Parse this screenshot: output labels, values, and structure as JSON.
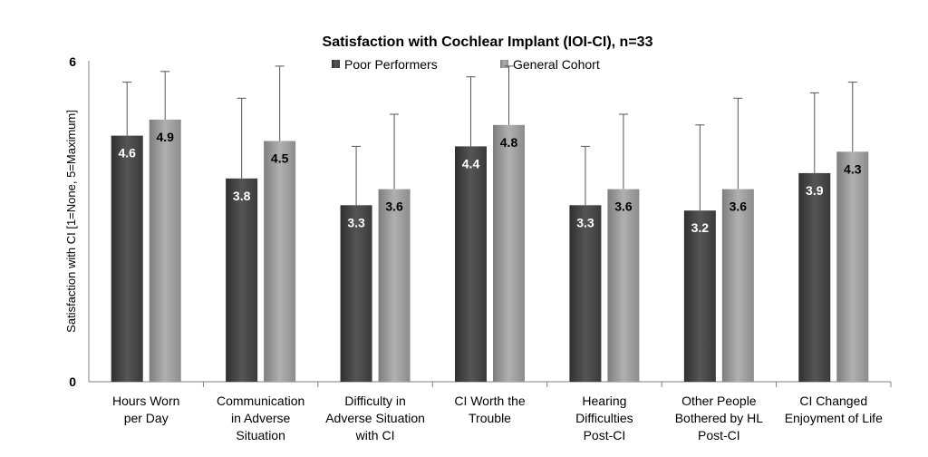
{
  "chart_data": {
    "type": "bar",
    "title": "Satisfaction with Cochlear Implant (IOI-CI), n=33",
    "ylabel": "Satisfaction with CI [1=None, 5=Maximum]",
    "xlabel": "",
    "ylim": [
      0,
      6
    ],
    "yticks": [
      "0",
      "6"
    ],
    "legend_position": "top",
    "categories": [
      [
        "Hours Worn",
        "per Day"
      ],
      [
        "Communication",
        "in Adverse",
        "Situation"
      ],
      [
        "Difficulty in",
        "Adverse Situation",
        "with CI"
      ],
      [
        "CI Worth the",
        "Trouble"
      ],
      [
        "Hearing",
        "Difficulties",
        "Post-CI"
      ],
      [
        "Other People",
        "Bothered by HL",
        "Post-CI"
      ],
      [
        "CI Changed",
        "Enjoyment of Life"
      ]
    ],
    "series": [
      {
        "name": "Poor Performers",
        "color": "#4a4a4a",
        "values": [
          4.6,
          3.8,
          3.3,
          4.4,
          3.3,
          3.2,
          3.9
        ],
        "labels": [
          "4.6",
          "3.8",
          "3.3",
          "4.4",
          "3.3",
          "3.2",
          "3.9"
        ],
        "error_upper": [
          5.6,
          5.3,
          4.4,
          5.7,
          4.4,
          4.8,
          5.4
        ]
      },
      {
        "name": "General Cohort",
        "color": "#9a9a9a",
        "values": [
          4.9,
          4.5,
          3.6,
          4.8,
          3.6,
          3.6,
          4.3
        ],
        "labels": [
          "4.9",
          "4.5",
          "3.6",
          "4.8",
          "3.6",
          "3.6",
          "4.3"
        ],
        "error_upper": [
          5.8,
          5.9,
          5.0,
          5.9,
          5.0,
          5.3,
          5.6
        ]
      }
    ]
  }
}
